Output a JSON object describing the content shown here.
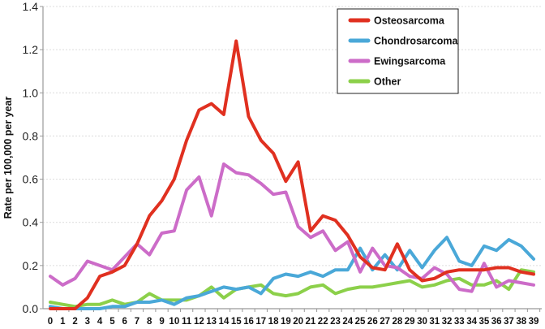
{
  "chart_data": {
    "type": "line",
    "title": "",
    "xlabel": "",
    "ylabel": "Rate per 100,000 per year",
    "ylim": [
      0,
      1.4
    ],
    "yticks": [
      "0.0",
      "0.2",
      "0.4",
      "0.6",
      "0.8",
      "1.0",
      "1.2",
      "1.4"
    ],
    "ytick_values": [
      0,
      0.2,
      0.4,
      0.6,
      0.8,
      1.0,
      1.2,
      1.4
    ],
    "grid": "horizontal-dotted",
    "legend_position": "top-right",
    "x": [
      0,
      1,
      2,
      3,
      4,
      5,
      6,
      7,
      8,
      9,
      10,
      11,
      12,
      13,
      14,
      15,
      16,
      17,
      18,
      19,
      20,
      21,
      22,
      23,
      24,
      25,
      26,
      27,
      28,
      29,
      30,
      31,
      32,
      33,
      34,
      35,
      36,
      37,
      38,
      39
    ],
    "xticks": [
      "0",
      "1",
      "2",
      "3",
      "4",
      "5",
      "6",
      "7",
      "8",
      "9",
      "10",
      "11",
      "12",
      "13",
      "14",
      "15",
      "16",
      "17",
      "18",
      "19",
      "20",
      "21",
      "22",
      "23",
      "24",
      "25",
      "26",
      "27",
      "28",
      "29",
      "30",
      "31",
      "32",
      "33",
      "34",
      "35",
      "36",
      "37",
      "38",
      "39"
    ],
    "series": [
      {
        "name": "Osteosarcoma",
        "color": "#e03020",
        "values": [
          0.0,
          0.0,
          0.0,
          0.05,
          0.15,
          0.17,
          0.2,
          0.3,
          0.43,
          0.5,
          0.6,
          0.78,
          0.92,
          0.95,
          0.9,
          1.24,
          0.89,
          0.78,
          0.72,
          0.59,
          0.68,
          0.36,
          0.43,
          0.41,
          0.34,
          0.24,
          0.19,
          0.18,
          0.3,
          0.18,
          0.13,
          0.14,
          0.17,
          0.18,
          0.18,
          0.18,
          0.19,
          0.19,
          0.17,
          0.16
        ]
      },
      {
        "name": "Chondrosarcoma",
        "color": "#4aa8d8",
        "values": [
          0.01,
          0.0,
          0.0,
          0.0,
          0.0,
          0.01,
          0.01,
          0.03,
          0.03,
          0.04,
          0.02,
          0.05,
          0.06,
          0.08,
          0.1,
          0.09,
          0.1,
          0.07,
          0.14,
          0.16,
          0.15,
          0.17,
          0.15,
          0.18,
          0.18,
          0.28,
          0.18,
          0.25,
          0.18,
          0.27,
          0.19,
          0.27,
          0.33,
          0.22,
          0.2,
          0.29,
          0.27,
          0.32,
          0.29,
          0.23
        ]
      },
      {
        "name": "Ewingsarcoma",
        "color": "#cc6cc8",
        "values": [
          0.15,
          0.11,
          0.14,
          0.22,
          0.2,
          0.18,
          0.24,
          0.3,
          0.25,
          0.35,
          0.36,
          0.55,
          0.61,
          0.43,
          0.67,
          0.63,
          0.62,
          0.58,
          0.53,
          0.54,
          0.38,
          0.33,
          0.36,
          0.27,
          0.31,
          0.17,
          0.28,
          0.2,
          0.19,
          0.15,
          0.14,
          0.19,
          0.16,
          0.09,
          0.08,
          0.21,
          0.1,
          0.13,
          0.12,
          0.11
        ]
      },
      {
        "name": "Other",
        "color": "#8cd04a",
        "values": [
          0.03,
          0.02,
          0.01,
          0.02,
          0.02,
          0.04,
          0.02,
          0.03,
          0.07,
          0.04,
          0.04,
          0.04,
          0.06,
          0.1,
          0.05,
          0.09,
          0.1,
          0.11,
          0.07,
          0.06,
          0.07,
          0.1,
          0.11,
          0.07,
          0.09,
          0.1,
          0.1,
          0.11,
          0.12,
          0.13,
          0.1,
          0.11,
          0.13,
          0.14,
          0.11,
          0.11,
          0.13,
          0.09,
          0.18,
          0.17
        ]
      }
    ]
  }
}
